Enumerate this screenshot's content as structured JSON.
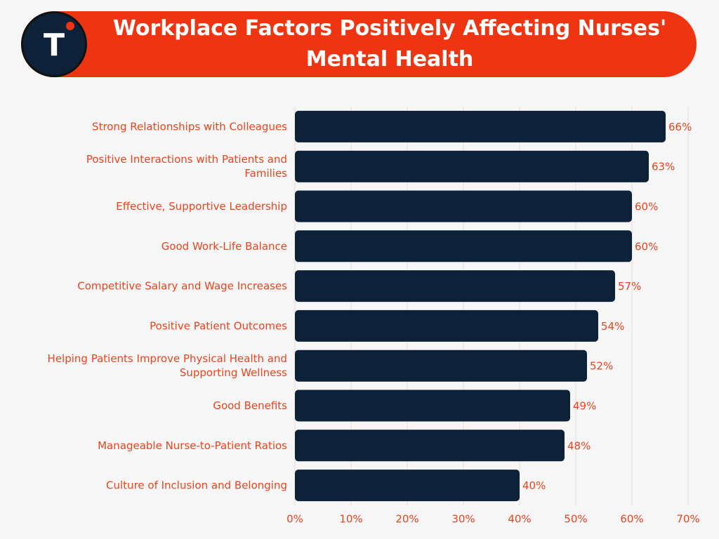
{
  "header": {
    "title": "Workplace Factors Positively Affecting Nurses'\nMental Health",
    "logo_letter": "T"
  },
  "colors": {
    "banner": "#ee3410",
    "bar": "#0d2238",
    "text_accent": "#e8441e",
    "grid": "#f0d9d6",
    "background": "#f7f6f6"
  },
  "chart_data": {
    "type": "bar",
    "orientation": "horizontal",
    "title": "Workplace Factors Positively Affecting Nurses' Mental Health",
    "categories": [
      "Strong Relationships with Colleagues",
      "Positive Interactions with Patients and Families",
      "Effective, Supportive Leadership",
      "Good Work-Life Balance",
      "Competitive Salary and Wage Increases",
      "Positive Patient Outcomes",
      "Helping Patients Improve Physical Health and Supporting Wellness",
      "Good Benefits",
      "Manageable Nurse-to-Patient Ratios",
      "Culture of Inclusion and Belonging"
    ],
    "values": [
      66,
      63,
      60,
      60,
      57,
      54,
      52,
      49,
      48,
      40
    ],
    "value_labels": [
      "66%",
      "63%",
      "60%",
      "60%",
      "57%",
      "54%",
      "52%",
      "49%",
      "48%",
      "40%"
    ],
    "xlim": [
      0,
      70
    ],
    "x_ticks": [
      0,
      10,
      20,
      30,
      40,
      50,
      60,
      70
    ],
    "x_tick_labels": [
      "0%",
      "10%",
      "20%",
      "30%",
      "40%",
      "50%",
      "60%",
      "70%"
    ],
    "xlabel": "",
    "ylabel": "",
    "grid": true,
    "legend": "none"
  }
}
